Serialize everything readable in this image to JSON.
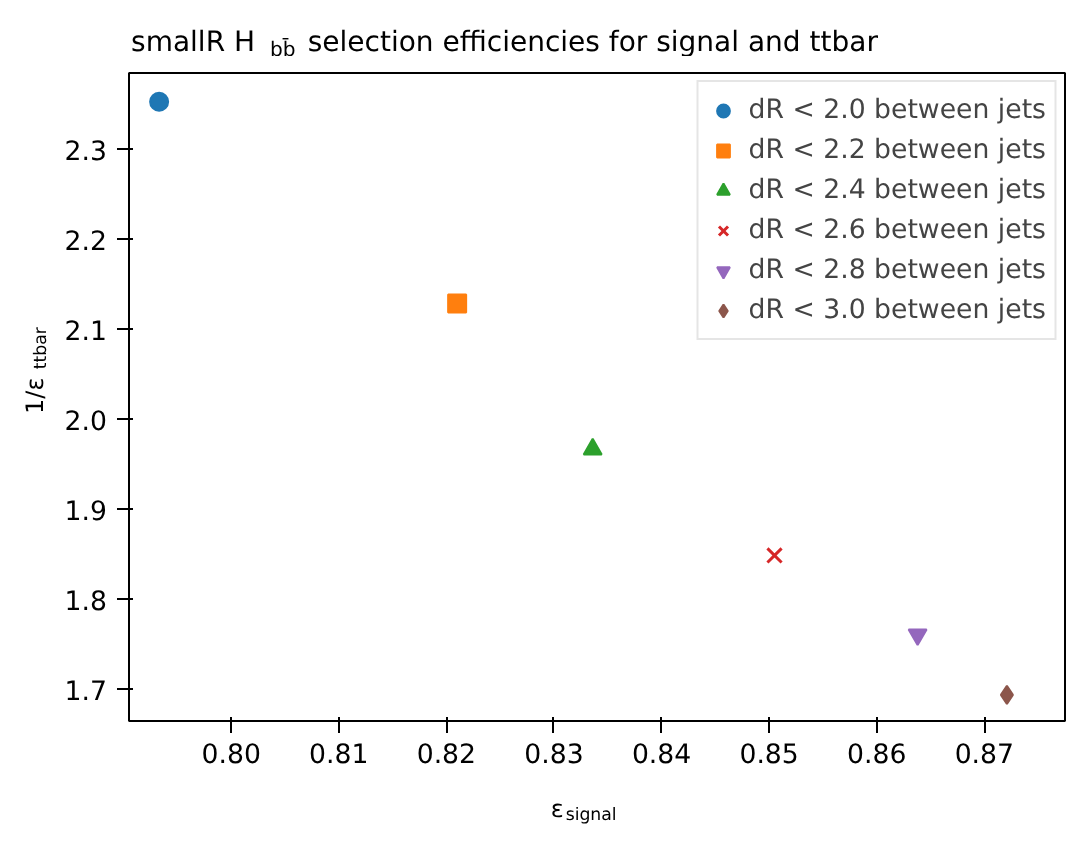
{
  "chart_data": {
    "type": "scatter",
    "title": "smallR H$_{bb̄}$ selection efficiencies for signal and ttbar",
    "xlabel": "ε$_{signal}$",
    "ylabel": "1/ε$_{ttbar}$",
    "xlim": [
      0.7905,
      0.8775
    ],
    "ylim": [
      1.665,
      2.385
    ],
    "xticks": [
      {
        "value": 0.8,
        "label": "0.80"
      },
      0.81,
      0.82,
      0.83,
      0.84,
      0.85,
      0.86,
      0.87
    ],
    "yticks": [
      {
        "value": 1.7,
        "label": "1.7"
      },
      {
        "value": 1.8,
        "label": "1.8"
      },
      {
        "value": 1.9,
        "label": "1.9"
      },
      {
        "value": 2.0,
        "label": "2.0"
      },
      {
        "value": 2.1,
        "label": "2.1"
      },
      {
        "value": 2.2,
        "label": "2.2"
      },
      {
        "value": 2.3,
        "label": "2.3"
      }
    ],
    "grid": false,
    "legend": "top right",
    "series": [
      {
        "name": "dR < 2.0 between jets",
        "color": "#1f77b4",
        "marker": "circle",
        "x": [
          0.7933
        ],
        "values": [
          2.353
        ]
      },
      {
        "name": "dR < 2.2 between jets",
        "color": "#ff7f0e",
        "marker": "square",
        "x": [
          0.821
        ],
        "values": [
          2.129
        ]
      },
      {
        "name": "dR < 2.4 between jets",
        "color": "#2ca02c",
        "marker": "triangle",
        "x": [
          0.8336
        ],
        "values": [
          1.967
        ]
      },
      {
        "name": "dR < 2.6 between jets",
        "color": "#d62728",
        "marker": "cross",
        "x": [
          0.8505
        ],
        "values": [
          1.849
        ]
      },
      {
        "name": "dR < 2.8 between jets",
        "color": "#9467bd",
        "x": [
          0.8638
        ],
        "values": [
          1.761
        ]
      },
      {
        "name": "dR < 3.0 between jets",
        "color": "#8c564b",
        "marker": "diamond",
        "x": [
          0.8721
        ],
        "values": [
          1.694
        ]
      }
    ]
  }
}
